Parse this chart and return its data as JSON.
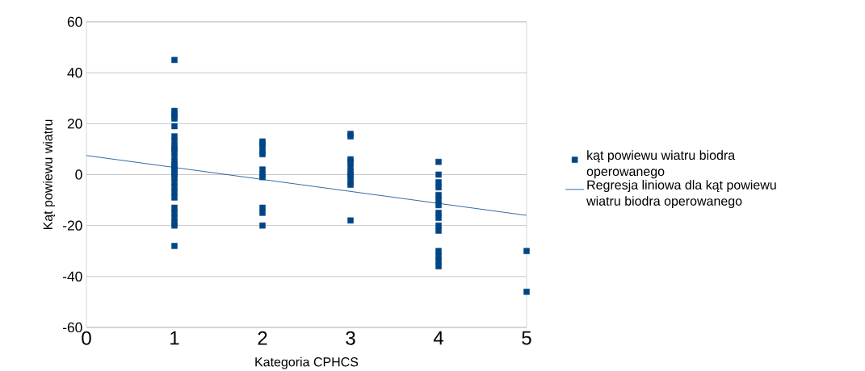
{
  "chart_data": {
    "type": "scatter",
    "xlabel": "Kategoria CPHCS",
    "ylabel": "Kąt powiewu wiatru",
    "xlim": [
      0,
      5
    ],
    "ylim": [
      -60,
      60
    ],
    "xticks": [
      {
        "value": 0,
        "label": "0"
      },
      {
        "value": 1,
        "label": "1"
      },
      {
        "value": 2,
        "label": "2"
      },
      {
        "value": 3,
        "label": "3"
      },
      {
        "value": 4,
        "label": "4"
      },
      {
        "value": 5,
        "label": "5"
      }
    ],
    "yticks": [
      {
        "value": -60,
        "label": "-60"
      },
      {
        "value": -40,
        "label": "-40"
      },
      {
        "value": -20,
        "label": "-20"
      },
      {
        "value": 0,
        "label": "0"
      },
      {
        "value": 20,
        "label": "20"
      },
      {
        "value": 40,
        "label": "40"
      },
      {
        "value": 60,
        "label": "60"
      }
    ],
    "grid": "y",
    "legend": "right",
    "series": [
      {
        "name": "kąt powiewu wiatru biodra operowanego",
        "type": "scatter",
        "marker": "square",
        "color": "#004586",
        "x": [
          1,
          1,
          1,
          1,
          1,
          1,
          1,
          1,
          1,
          1,
          1,
          1,
          1,
          1,
          1,
          1,
          1,
          1,
          1,
          1,
          1,
          1,
          1,
          1,
          1,
          1,
          1,
          1,
          1,
          2,
          2,
          2,
          2,
          2,
          2,
          2,
          2,
          2,
          2,
          2,
          3,
          3,
          3,
          3,
          3,
          3,
          3,
          3,
          3,
          3,
          3,
          4,
          4,
          4,
          4,
          4,
          4,
          4,
          4,
          4,
          4,
          4,
          4,
          4,
          4,
          4,
          5,
          5
        ],
        "values": [
          45,
          25,
          24,
          23,
          22,
          19,
          15,
          13,
          11,
          10,
          9,
          7,
          5,
          4,
          3,
          2,
          1,
          0,
          -1,
          -3,
          -5,
          -7,
          -9,
          -13,
          -15,
          -17,
          -19,
          -20,
          -28,
          13,
          12,
          11,
          9,
          8,
          2,
          0,
          -1,
          -13,
          -15,
          -20,
          16,
          15,
          6,
          5,
          3,
          1,
          0,
          -1,
          -3,
          -4,
          -18,
          5,
          0,
          -3,
          -5,
          -8,
          -10,
          -12,
          -15,
          -17,
          -20,
          -22,
          -30,
          -32,
          -34,
          -36,
          -30,
          -46
        ]
      },
      {
        "name": "Regresja liniowa dla kąt powiewu wiatru biodra operowanego",
        "type": "line",
        "marker": "none",
        "color": "#004586",
        "x": [
          0,
          5
        ],
        "values": [
          7.5,
          -16
        ]
      }
    ]
  }
}
